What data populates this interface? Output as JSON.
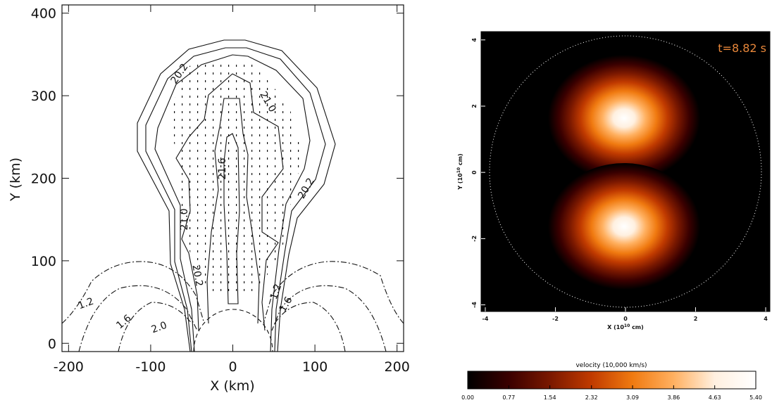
{
  "chart_data": [
    {
      "type": "contour",
      "xlabel": "X (km)",
      "ylabel": "Y (km)",
      "xlim": [
        -208,
        208
      ],
      "ylim": [
        -10,
        410
      ],
      "xticks": [
        -200,
        -100,
        0,
        100,
        200
      ],
      "yticks": [
        0,
        100,
        200,
        300,
        400
      ],
      "contour_labels": [
        "20.2",
        "21.0",
        "21.6",
        "20.2",
        "21.0",
        "20.2",
        "1.2",
        "1.6",
        "2.0",
        "1.2",
        "1.6"
      ]
    },
    {
      "type": "heatmap",
      "xlabel": [
        "X (10",
        "10",
        " cm)"
      ],
      "ylabel": [
        "Y (10",
        "10",
        " cm)"
      ],
      "annotation": "t=8.82 s",
      "annotation_color": "#e8873a",
      "xlim": [
        -4.12,
        4.12
      ],
      "ylim": [
        -4.2,
        4.25
      ],
      "xticks": [
        -4,
        -2,
        0,
        2,
        4
      ],
      "yticks": [
        -4,
        -2,
        0,
        2,
        4
      ],
      "colorbar": {
        "label": "velocity (10,000 km/s)",
        "lim": [
          0,
          5.4
        ],
        "ticks": [
          {
            "value": 0,
            "label": "0.00"
          },
          0.77,
          1.54,
          2.32,
          3.09,
          3.86,
          4.63,
          {
            "value": 5.4,
            "label": "5.40"
          }
        ],
        "colors": [
          "#000000",
          "#3a0000",
          "#7a1800",
          "#c03a00",
          "#f07a10",
          "#ffb060",
          "#fff0e0",
          "#ffffff"
        ]
      }
    }
  ]
}
